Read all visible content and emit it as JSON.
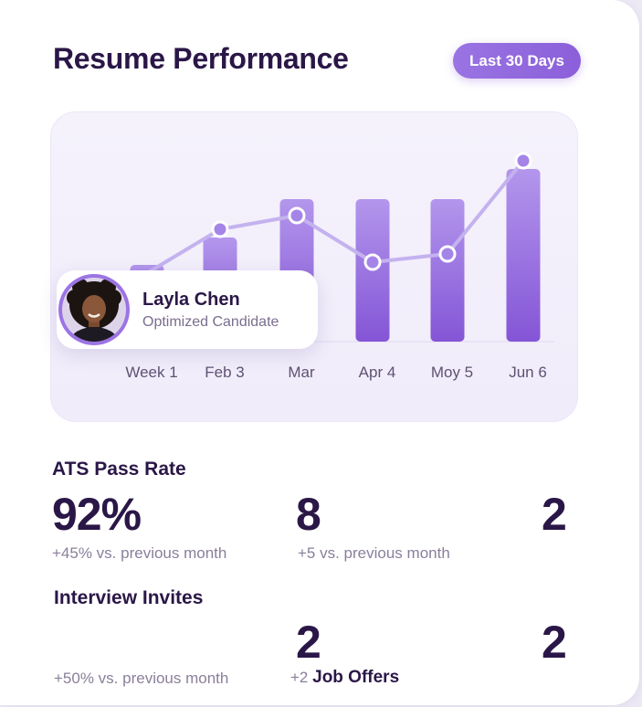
{
  "header": {
    "title": "Resume Performance",
    "range_label": "Last 30 Days"
  },
  "colors": {
    "accent": "#8b5fd9",
    "bar": "#9d79e4",
    "line": "#c4b2ef",
    "text_dark": "#2a1747",
    "text_muted": "#8a7f9b"
  },
  "chart_data": {
    "type": "bar",
    "categories": [
      "Week 1",
      "Feb 3",
      "Mar",
      "Apr 4",
      "Moy 5",
      "Jun 6"
    ],
    "series": [
      {
        "type": "bar",
        "values": [
          28,
          38,
          52,
          52,
          52,
          63
        ]
      },
      {
        "type": "line",
        "values": [
          25,
          41,
          46,
          29,
          32,
          66
        ]
      }
    ],
    "ylim": [
      0,
      80
    ],
    "grid": false
  },
  "profile": {
    "name": "Layla Chen",
    "role": "Optimized Candidate",
    "avatar_icon": "avatar-photo"
  },
  "stats": {
    "ats": {
      "label": "ATS Pass Rate",
      "value": "92%",
      "sub": "+45% vs. previous month"
    },
    "middle_top": {
      "value": "8",
      "sub": "+5 vs. previous month"
    },
    "right_top": {
      "value": "2"
    },
    "interviews": {
      "label": "Interview Invites",
      "sub": "+50% vs. previous month"
    },
    "middle_bottom": {
      "value": "2",
      "sub_prefix": "+2",
      "sub_bold": "Job Offers"
    },
    "right_bottom": {
      "value": "2"
    }
  }
}
